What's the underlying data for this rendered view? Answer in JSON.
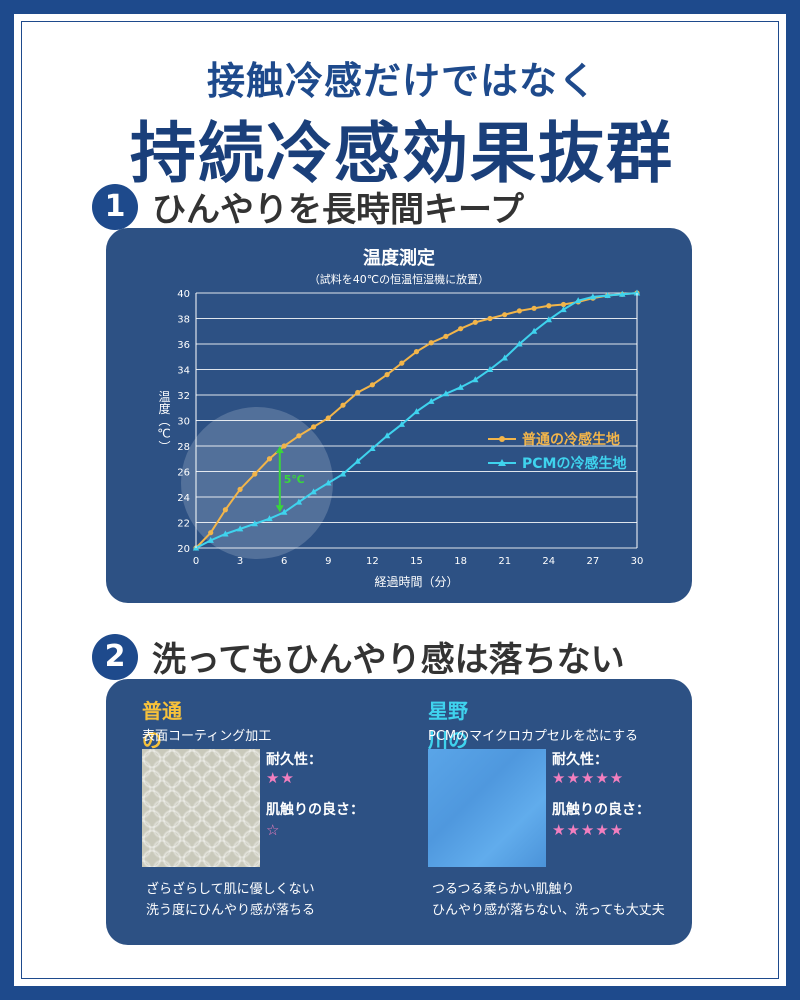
{
  "header": {
    "subtitle": "接触冷感だけではなく",
    "title": "持続冷感効果抜群"
  },
  "section1": {
    "number": "1",
    "heading": "ひんやりを長時間キープ"
  },
  "section2": {
    "number": "2",
    "heading": "洗ってもひんやり感は落ちない"
  },
  "chart_data": {
    "type": "line",
    "title": "温度測定",
    "subtitle": "（試料を40℃の恒温恒湿機に放置）",
    "xlabel": "経過時間（分）",
    "ylabel": "温度（℃）",
    "xlim": [
      0,
      30
    ],
    "ylim": [
      20,
      40
    ],
    "x_ticks": [
      "0",
      "3",
      "6",
      "9",
      "12",
      "15",
      "18",
      "21",
      "24",
      "27",
      "30"
    ],
    "y_ticks": [
      "20",
      "22",
      "24",
      "26",
      "28",
      "30",
      "32",
      "34",
      "36",
      "38",
      "40"
    ],
    "grid": "horizontal",
    "legend_position": "right",
    "annotation": "5℃",
    "series": [
      {
        "name": "普通の冷感生地",
        "color": "#f2b54a",
        "marker": "circle",
        "x": [
          0,
          1,
          2,
          3,
          4,
          5,
          6,
          7,
          8,
          9,
          10,
          11,
          12,
          13,
          14,
          15,
          16,
          17,
          18,
          19,
          20,
          21,
          22,
          23,
          24,
          25,
          26,
          27,
          28,
          29,
          30
        ],
        "y": [
          20.0,
          21.2,
          23.0,
          24.6,
          25.8,
          27.0,
          28.0,
          28.8,
          29.5,
          30.2,
          31.2,
          32.2,
          32.8,
          33.6,
          34.5,
          35.4,
          36.1,
          36.6,
          37.2,
          37.7,
          38.0,
          38.3,
          38.6,
          38.8,
          39.0,
          39.1,
          39.3,
          39.6,
          39.8,
          39.9,
          40.0
        ]
      },
      {
        "name": "PCMの冷感生地",
        "color": "#3fd3ee",
        "marker": "triangle",
        "x": [
          0,
          1,
          2,
          3,
          4,
          5,
          6,
          7,
          8,
          9,
          10,
          11,
          12,
          13,
          14,
          15,
          16,
          17,
          18,
          19,
          20,
          21,
          22,
          23,
          24,
          25,
          26,
          27,
          28,
          29,
          30
        ],
        "y": [
          20.0,
          20.6,
          21.1,
          21.5,
          21.9,
          22.3,
          22.8,
          23.6,
          24.4,
          25.1,
          25.8,
          26.8,
          27.8,
          28.8,
          29.7,
          30.7,
          31.5,
          32.1,
          32.6,
          33.2,
          34.0,
          34.9,
          36.0,
          37.0,
          37.9,
          38.7,
          39.4,
          39.7,
          39.8,
          39.9,
          40.0
        ]
      }
    ]
  },
  "comparison": {
    "ordinary": {
      "title": "普通のPCM生地",
      "description": "表面コーティング加工",
      "durability_label": "耐久性：",
      "durability_stars": "★★",
      "touch_label": "肌触りの良さ：",
      "touch_stars": "☆",
      "note_line1": "ざらざらして肌に優しくない",
      "note_line2": "洗う度にひんやり感が落ちる"
    },
    "hoshinogawa": {
      "title": "星野川のPCM生地",
      "description": "PCMのマイクロカプセルを芯にする",
      "durability_label": "耐久性：",
      "durability_stars": "★★★★★",
      "touch_label": "肌触りの良さ：",
      "touch_stars": "★★★★★",
      "note_line1": "つるつる柔らかい肌触り",
      "note_line2": "ひんやり感が落ちない、洗っても大丈夫"
    }
  },
  "colors": {
    "brand_blue": "#1e4a8c",
    "panel": "#2d5184",
    "ordinary_title": "#f6c13b",
    "pcm_title": "#3fd3ee",
    "stars": "#f27fbf"
  }
}
